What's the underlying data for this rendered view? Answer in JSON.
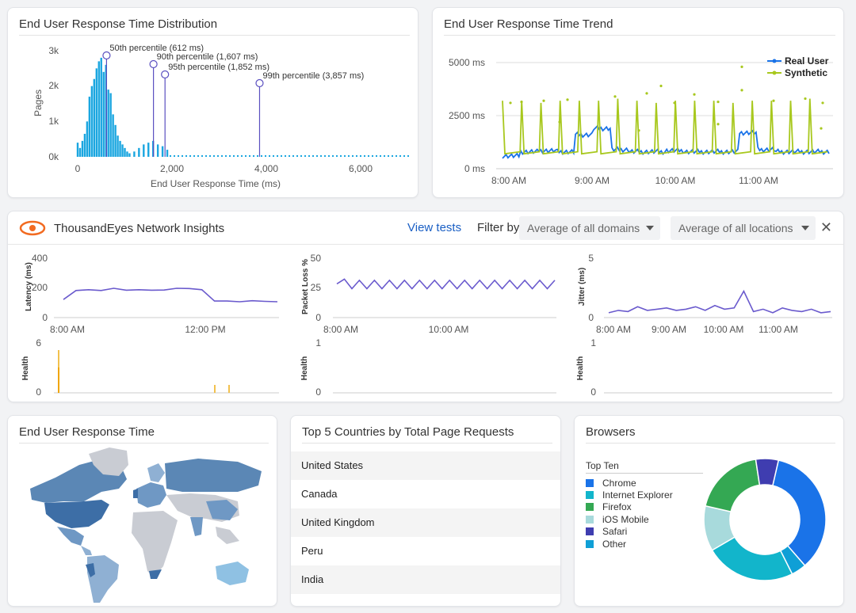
{
  "distribution": {
    "title": "End User Response Time Distribution",
    "ylabel": "Pages",
    "xlabel": "End User Response Time (ms)",
    "y_ticks": [
      "3k",
      "2k",
      "1k",
      "0k"
    ],
    "x_ticks": [
      "0",
      "2,000",
      "4,000",
      "6,000"
    ],
    "percentiles": [
      {
        "label": "50th percentile (612 ms)",
        "value": 612
      },
      {
        "label": "90th percentile (1,607 ms)",
        "value": 1607
      },
      {
        "label": "95th percentile (1,852 ms)",
        "value": 1852
      },
      {
        "label": "99th percentile (3,857 ms)",
        "value": 3857
      }
    ]
  },
  "trend": {
    "title": "End User Response Time Trend",
    "y_ticks": [
      "5000 ms",
      "2500 ms",
      "0 ms"
    ],
    "x_ticks": [
      "8:00 AM",
      "9:00 AM",
      "10:00 AM",
      "11:00 AM"
    ],
    "legend": [
      {
        "name": "Real User",
        "color": "#1a73e8"
      },
      {
        "name": "Synthetic",
        "color": "#a8c81e"
      }
    ]
  },
  "insights": {
    "title": "ThousandEyes Network Insights",
    "view_tests": "View tests",
    "filter_by": "Filter by",
    "domain_select": "Average of all domains",
    "location_select": "Average of all locations",
    "close": "✕",
    "latency": {
      "ylabel": "Latency (ms)",
      "y_ticks": [
        "400",
        "200",
        "0"
      ],
      "x_ticks": [
        "8:00 AM",
        "12:00 PM"
      ]
    },
    "packet_loss": {
      "ylabel": "Packet Loss %",
      "y_ticks": [
        "50",
        "25",
        "0"
      ],
      "x_ticks": [
        "8:00 AM",
        "10:00 AM"
      ]
    },
    "jitter": {
      "ylabel": "Jitter (ms)",
      "y_ticks": [
        "5",
        "0"
      ],
      "x_ticks": [
        "8:00 AM",
        "9:00 AM",
        "10:00 AM",
        "11:00 AM"
      ]
    },
    "health_1": {
      "ylabel": "Health",
      "y_ticks": [
        "6",
        "0"
      ]
    },
    "health_2": {
      "ylabel": "Health",
      "y_ticks": [
        "1",
        "0"
      ]
    },
    "health_3": {
      "ylabel": "Health",
      "y_ticks": [
        "1",
        "0"
      ]
    }
  },
  "map": {
    "title": "End User Response Time"
  },
  "countries": {
    "title": "Top 5 Countries by Total Page Requests",
    "rows": [
      "United States",
      "Canada",
      "United Kingdom",
      "Peru",
      "India"
    ]
  },
  "browsers": {
    "title": "Browsers",
    "legend_title": "Top Ten",
    "items": [
      {
        "name": "Chrome",
        "color": "#1a73e8"
      },
      {
        "name": "Internet Explorer",
        "color": "#12b5cb"
      },
      {
        "name": "Firefox",
        "color": "#34a853"
      },
      {
        "name": "iOS Mobile",
        "color": "#a8dadc"
      },
      {
        "name": "Safari",
        "color": "#3f3db0"
      },
      {
        "name": "Other",
        "color": "#0f9fd6"
      }
    ]
  },
  "chart_data": [
    {
      "type": "bar",
      "title": "End User Response Time Distribution",
      "xlabel": "End User Response Time (ms)",
      "ylabel": "Pages",
      "xlim": [
        0,
        7000
      ],
      "ylim": [
        0,
        3000
      ],
      "x": [
        0,
        50,
        100,
        150,
        200,
        250,
        300,
        350,
        400,
        450,
        500,
        550,
        600,
        650,
        700,
        750,
        800,
        850,
        900,
        950,
        1000,
        1050,
        1100,
        1200,
        1300,
        1400,
        1500,
        1600,
        1700,
        1800,
        1900
      ],
      "values": [
        400,
        250,
        450,
        650,
        1000,
        1700,
        2000,
        2200,
        2500,
        2700,
        2800,
        2400,
        2600,
        1900,
        1800,
        1200,
        900,
        600,
        450,
        350,
        250,
        150,
        100,
        150,
        250,
        350,
        400,
        450,
        350,
        300,
        200
      ]
    },
    {
      "type": "line",
      "title": "End User Response Time Trend",
      "ylim": [
        0,
        5000
      ],
      "series": [
        {
          "name": "Real User",
          "values": [
            600,
            800,
            850,
            800,
            1600,
            1900,
            900,
            800,
            800,
            850,
            800,
            800,
            800,
            1700,
            900,
            800,
            800,
            800
          ]
        },
        {
          "name": "Synthetic",
          "values": [
            3200,
            400,
            3100,
            400,
            3200,
            400,
            3300,
            400,
            3100,
            400,
            3200,
            400,
            3100,
            400,
            3200,
            400,
            3300,
            400
          ]
        }
      ]
    },
    {
      "type": "line",
      "ylabel": "Latency (ms)",
      "ylim": [
        0,
        400
      ],
      "values": [
        120,
        180,
        185,
        180,
        195,
        182,
        185,
        182,
        183,
        195,
        193,
        185,
        110,
        110,
        105,
        112,
        108,
        105
      ]
    },
    {
      "type": "line",
      "ylabel": "Packet Loss %",
      "ylim": [
        0,
        50
      ],
      "values": [
        28,
        32,
        24,
        31,
        24,
        31,
        24,
        31,
        24,
        31,
        24,
        31,
        24,
        31,
        24,
        31,
        24,
        31,
        24,
        31,
        24,
        31,
        24,
        31,
        24,
        31,
        24,
        31,
        24,
        31
      ]
    },
    {
      "type": "line",
      "ylabel": "Jitter (ms)",
      "ylim": [
        0,
        5
      ],
      "values": [
        0.4,
        0.6,
        0.5,
        0.9,
        0.6,
        0.7,
        0.8,
        0.6,
        0.7,
        0.9,
        0.6,
        1.0,
        0.7,
        0.8,
        2.2,
        0.5,
        0.7,
        0.4,
        0.8,
        0.6,
        0.5,
        0.7,
        0.4,
        0.5
      ]
    },
    {
      "type": "pie",
      "title": "Browsers",
      "categories": [
        "Chrome",
        "Internet Explorer",
        "Firefox",
        "iOS Mobile",
        "Safari",
        "Other"
      ],
      "values": [
        35,
        24,
        19,
        12,
        6,
        4
      ]
    }
  ]
}
